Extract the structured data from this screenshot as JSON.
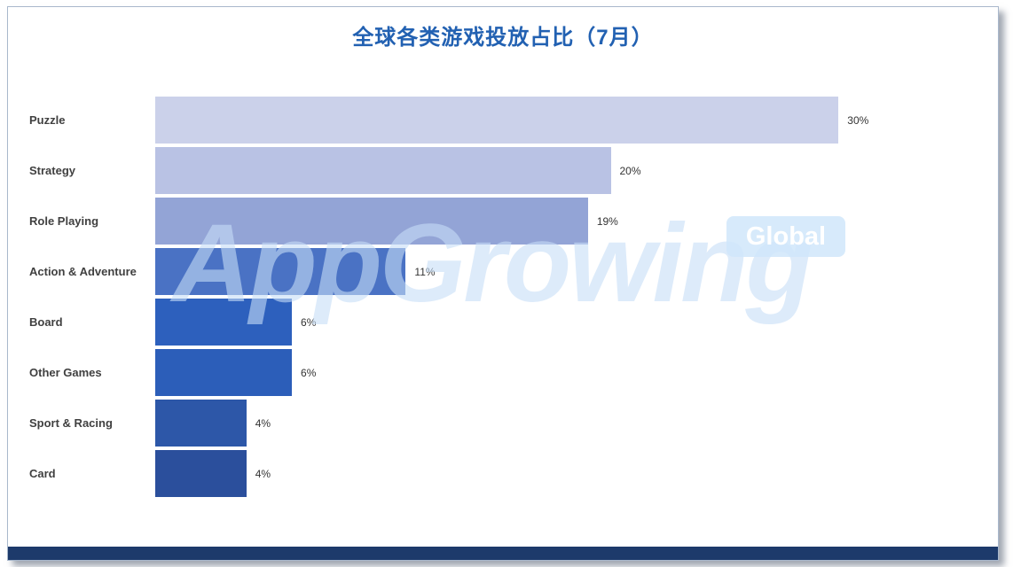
{
  "title": "全球各类游戏投放占比（7月）",
  "watermark": {
    "brand": "AppGrowing",
    "badge": "Global"
  },
  "colors": {
    "title": "#2261b2",
    "footer_strip": "#1d3a6b",
    "frame_border": "#a9b8cc"
  },
  "chart_data": {
    "type": "bar",
    "orientation": "horizontal",
    "title": "全球各类游戏投放占比（7月）",
    "xlabel": "",
    "ylabel": "",
    "xlim": [
      0,
      37
    ],
    "grid": false,
    "legend": false,
    "categories": [
      "Puzzle",
      "Strategy",
      "Role Playing",
      "Action & Adventure",
      "Board",
      "Other Games",
      "Sport & Racing",
      "Card"
    ],
    "values": [
      30,
      20,
      19,
      11,
      6,
      6,
      4,
      4
    ],
    "labels": [
      "30%",
      "20%",
      "19%",
      "11%",
      "6%",
      "6%",
      "4%",
      "4%"
    ],
    "bar_colors": [
      "#cbd1ea",
      "#b9c2e4",
      "#93a4d6",
      "#4a72c4",
      "#2d60bd",
      "#2c5eb9",
      "#2d57a8",
      "#2b4f9c"
    ]
  }
}
